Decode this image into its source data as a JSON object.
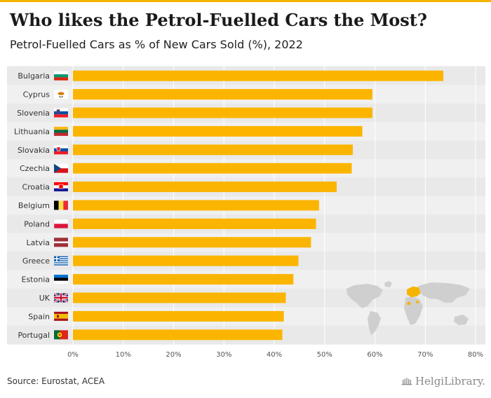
{
  "header": {
    "title": "Who likes the Petrol-Fuelled Cars the Most?",
    "subtitle": "Petrol-Fuelled Cars as % of New Cars Sold (%), 2022"
  },
  "footer": {
    "source": "Source: Eurostat, ACEA",
    "brand": "HelgiLibrary."
  },
  "colors": {
    "bar": "#fbb500",
    "accent": "#f5b400",
    "plot_bg": "#f0f0f0",
    "label": "#333333",
    "grid": "#ffffff"
  },
  "chart_data": {
    "type": "bar",
    "orientation": "horizontal",
    "title": "Who likes the Petrol-Fuelled Cars the Most?",
    "subtitle": "Petrol-Fuelled Cars as % of New Cars Sold (%), 2022",
    "xlabel": "",
    "ylabel": "",
    "xlim": [
      0,
      80
    ],
    "ticks": [
      0,
      10,
      20,
      30,
      40,
      50,
      60,
      70,
      80
    ],
    "tick_labels": [
      "0%",
      "10%",
      "20%",
      "30%",
      "40%",
      "50%",
      "60%",
      "70%",
      "80%"
    ],
    "grid": true,
    "categories": [
      "Bulgaria",
      "Cyprus",
      "Slovenia",
      "Lithuania",
      "Slovakia",
      "Czechia",
      "Croatia",
      "Belgium",
      "Poland",
      "Latvia",
      "Greece",
      "Estonia",
      "UK",
      "Spain",
      "Portugal"
    ],
    "flags": [
      "flag-bulgaria-icon",
      "flag-cyprus-icon",
      "flag-slovenia-icon",
      "flag-lithuania-icon",
      "flag-slovakia-icon",
      "flag-czechia-icon",
      "flag-croatia-icon",
      "flag-belgium-icon",
      "flag-poland-icon",
      "flag-latvia-icon",
      "flag-greece-icon",
      "flag-estonia-icon",
      "flag-uk-icon",
      "flag-spain-icon",
      "flag-portugal-icon"
    ],
    "values": [
      73.6,
      59.5,
      59.5,
      57.5,
      55.6,
      55.4,
      52.4,
      48.9,
      48.3,
      47.3,
      44.8,
      43.8,
      42.3,
      41.9,
      41.6
    ]
  }
}
